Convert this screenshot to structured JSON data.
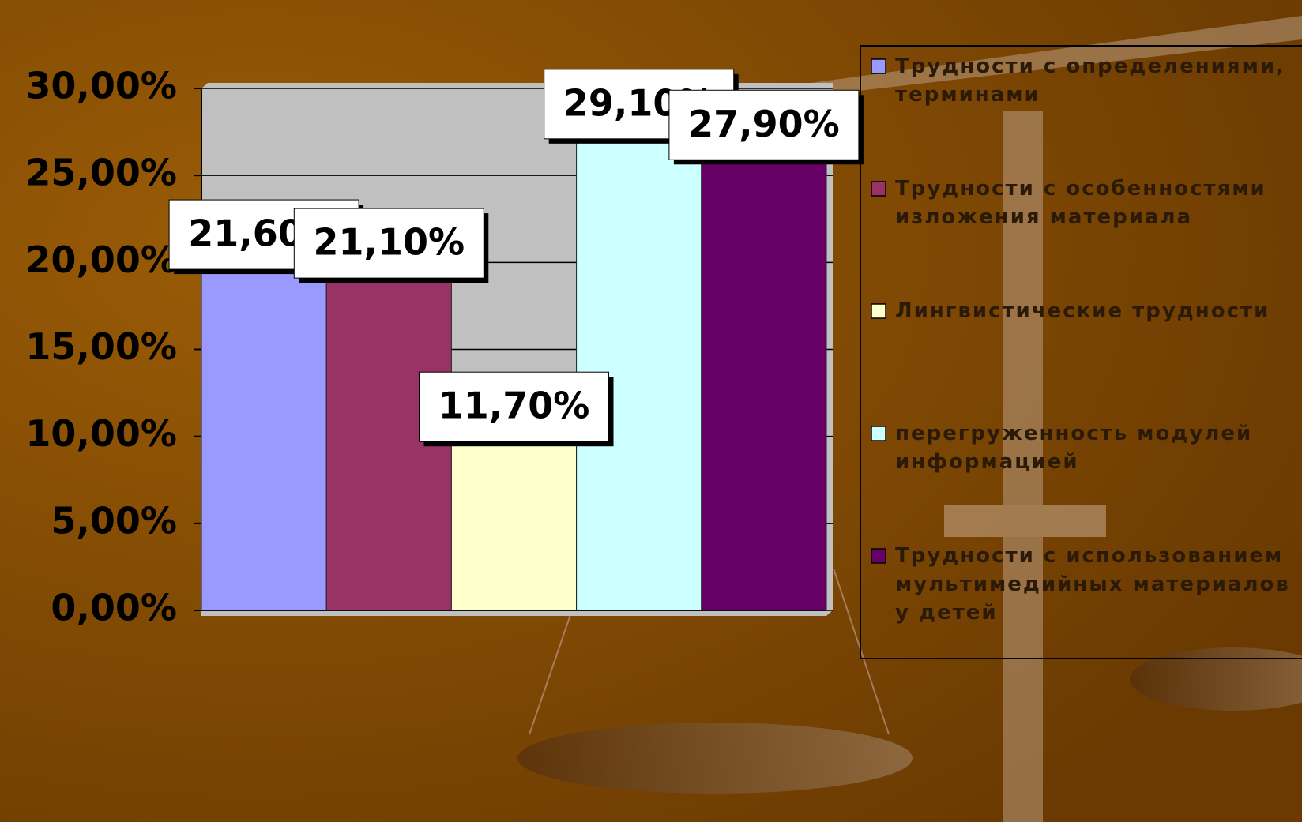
{
  "chart_data": {
    "type": "bar",
    "categories": [
      null
    ],
    "series": [
      {
        "name": "Трудности с определениями, терминами",
        "color": "#9999ff",
        "values": [
          21.6
        ],
        "value_labels": [
          "21,60%"
        ]
      },
      {
        "name": "Трудности с особенностями изложения материала",
        "color": "#993366",
        "values": [
          21.1
        ],
        "value_labels": [
          "21,10%"
        ]
      },
      {
        "name": "Лингвистические трудности",
        "color": "#ffffcc",
        "values": [
          11.7
        ],
        "value_labels": [
          "11,70%"
        ]
      },
      {
        "name": "перегруженность модулей информацией",
        "color": "#ccffff",
        "values": [
          29.1
        ],
        "value_labels": [
          "29,10%"
        ]
      },
      {
        "name": "Трудности с использованием мультимедийных материалов у детей",
        "color": "#660066",
        "values": [
          27.9
        ],
        "value_labels": [
          "27,90%"
        ]
      }
    ],
    "ylim": [
      0,
      30
    ],
    "yticks": [
      {
        "value": 0,
        "label": "0,00%"
      },
      {
        "value": 5,
        "label": "5,00%"
      },
      {
        "value": 10,
        "label": "10,00%"
      },
      {
        "value": 15,
        "label": "15,00%"
      },
      {
        "value": 20,
        "label": "20,00%"
      },
      {
        "value": 25,
        "label": "25,00%"
      },
      {
        "value": 30,
        "label": "30,00%"
      }
    ],
    "grid": true,
    "legend": "right"
  }
}
